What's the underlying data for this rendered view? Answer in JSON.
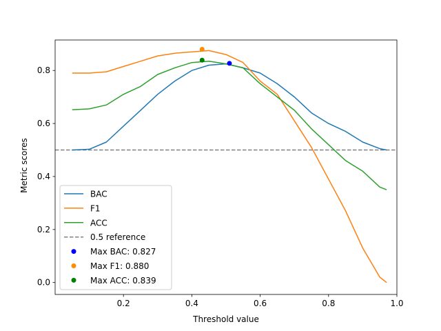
{
  "chart_data": {
    "type": "line",
    "title": "",
    "xlabel": "Threshold value",
    "ylabel": "Metric scores",
    "xlim": [
      0.0,
      1.0
    ],
    "ylim": [
      -0.045,
      0.915
    ],
    "x_ticks": [
      0.2,
      0.4,
      0.6,
      0.8,
      1.0
    ],
    "y_ticks": [
      0.0,
      0.2,
      0.4,
      0.6,
      0.8
    ],
    "x_tick_labels": [
      "0.2",
      "0.4",
      "0.6",
      "0.8",
      "1.0"
    ],
    "y_tick_labels": [
      "0.0",
      "0.2",
      "0.4",
      "0.6",
      "0.8"
    ],
    "grid": false,
    "legend_position": "lower-left",
    "x": [
      0.05,
      0.1,
      0.15,
      0.2,
      0.25,
      0.3,
      0.35,
      0.4,
      0.45,
      0.5,
      0.55,
      0.6,
      0.65,
      0.7,
      0.75,
      0.8,
      0.85,
      0.9,
      0.95,
      0.97
    ],
    "series": [
      {
        "name": "BAC",
        "color": "#1f77b4",
        "values": [
          0.5,
          0.503,
          0.53,
          0.59,
          0.65,
          0.71,
          0.76,
          0.8,
          0.82,
          0.825,
          0.81,
          0.79,
          0.75,
          0.7,
          0.64,
          0.6,
          0.57,
          0.53,
          0.505,
          0.5
        ]
      },
      {
        "name": "F1",
        "color": "#ff7f0e",
        "values": [
          0.79,
          0.79,
          0.795,
          0.815,
          0.835,
          0.855,
          0.865,
          0.87,
          0.875,
          0.86,
          0.83,
          0.76,
          0.71,
          0.61,
          0.51,
          0.39,
          0.27,
          0.13,
          0.02,
          0.0
        ]
      },
      {
        "name": "ACC",
        "color": "#2ca02c",
        "values": [
          0.652,
          0.655,
          0.67,
          0.71,
          0.74,
          0.785,
          0.81,
          0.83,
          0.835,
          0.825,
          0.81,
          0.75,
          0.7,
          0.65,
          0.58,
          0.52,
          0.46,
          0.42,
          0.36,
          0.35
        ]
      }
    ],
    "reference_line": {
      "label": "0.5 reference",
      "y": 0.5,
      "color": "#808080"
    },
    "max_points": [
      {
        "label": "Max BAC: 0.827",
        "x": 0.51,
        "y": 0.827,
        "color": "#0000ff"
      },
      {
        "label": "Max F1: 0.880",
        "x": 0.43,
        "y": 0.88,
        "color": "#ff8c00"
      },
      {
        "label": "Max ACC: 0.839",
        "x": 0.43,
        "y": 0.839,
        "color": "#008000"
      }
    ]
  }
}
